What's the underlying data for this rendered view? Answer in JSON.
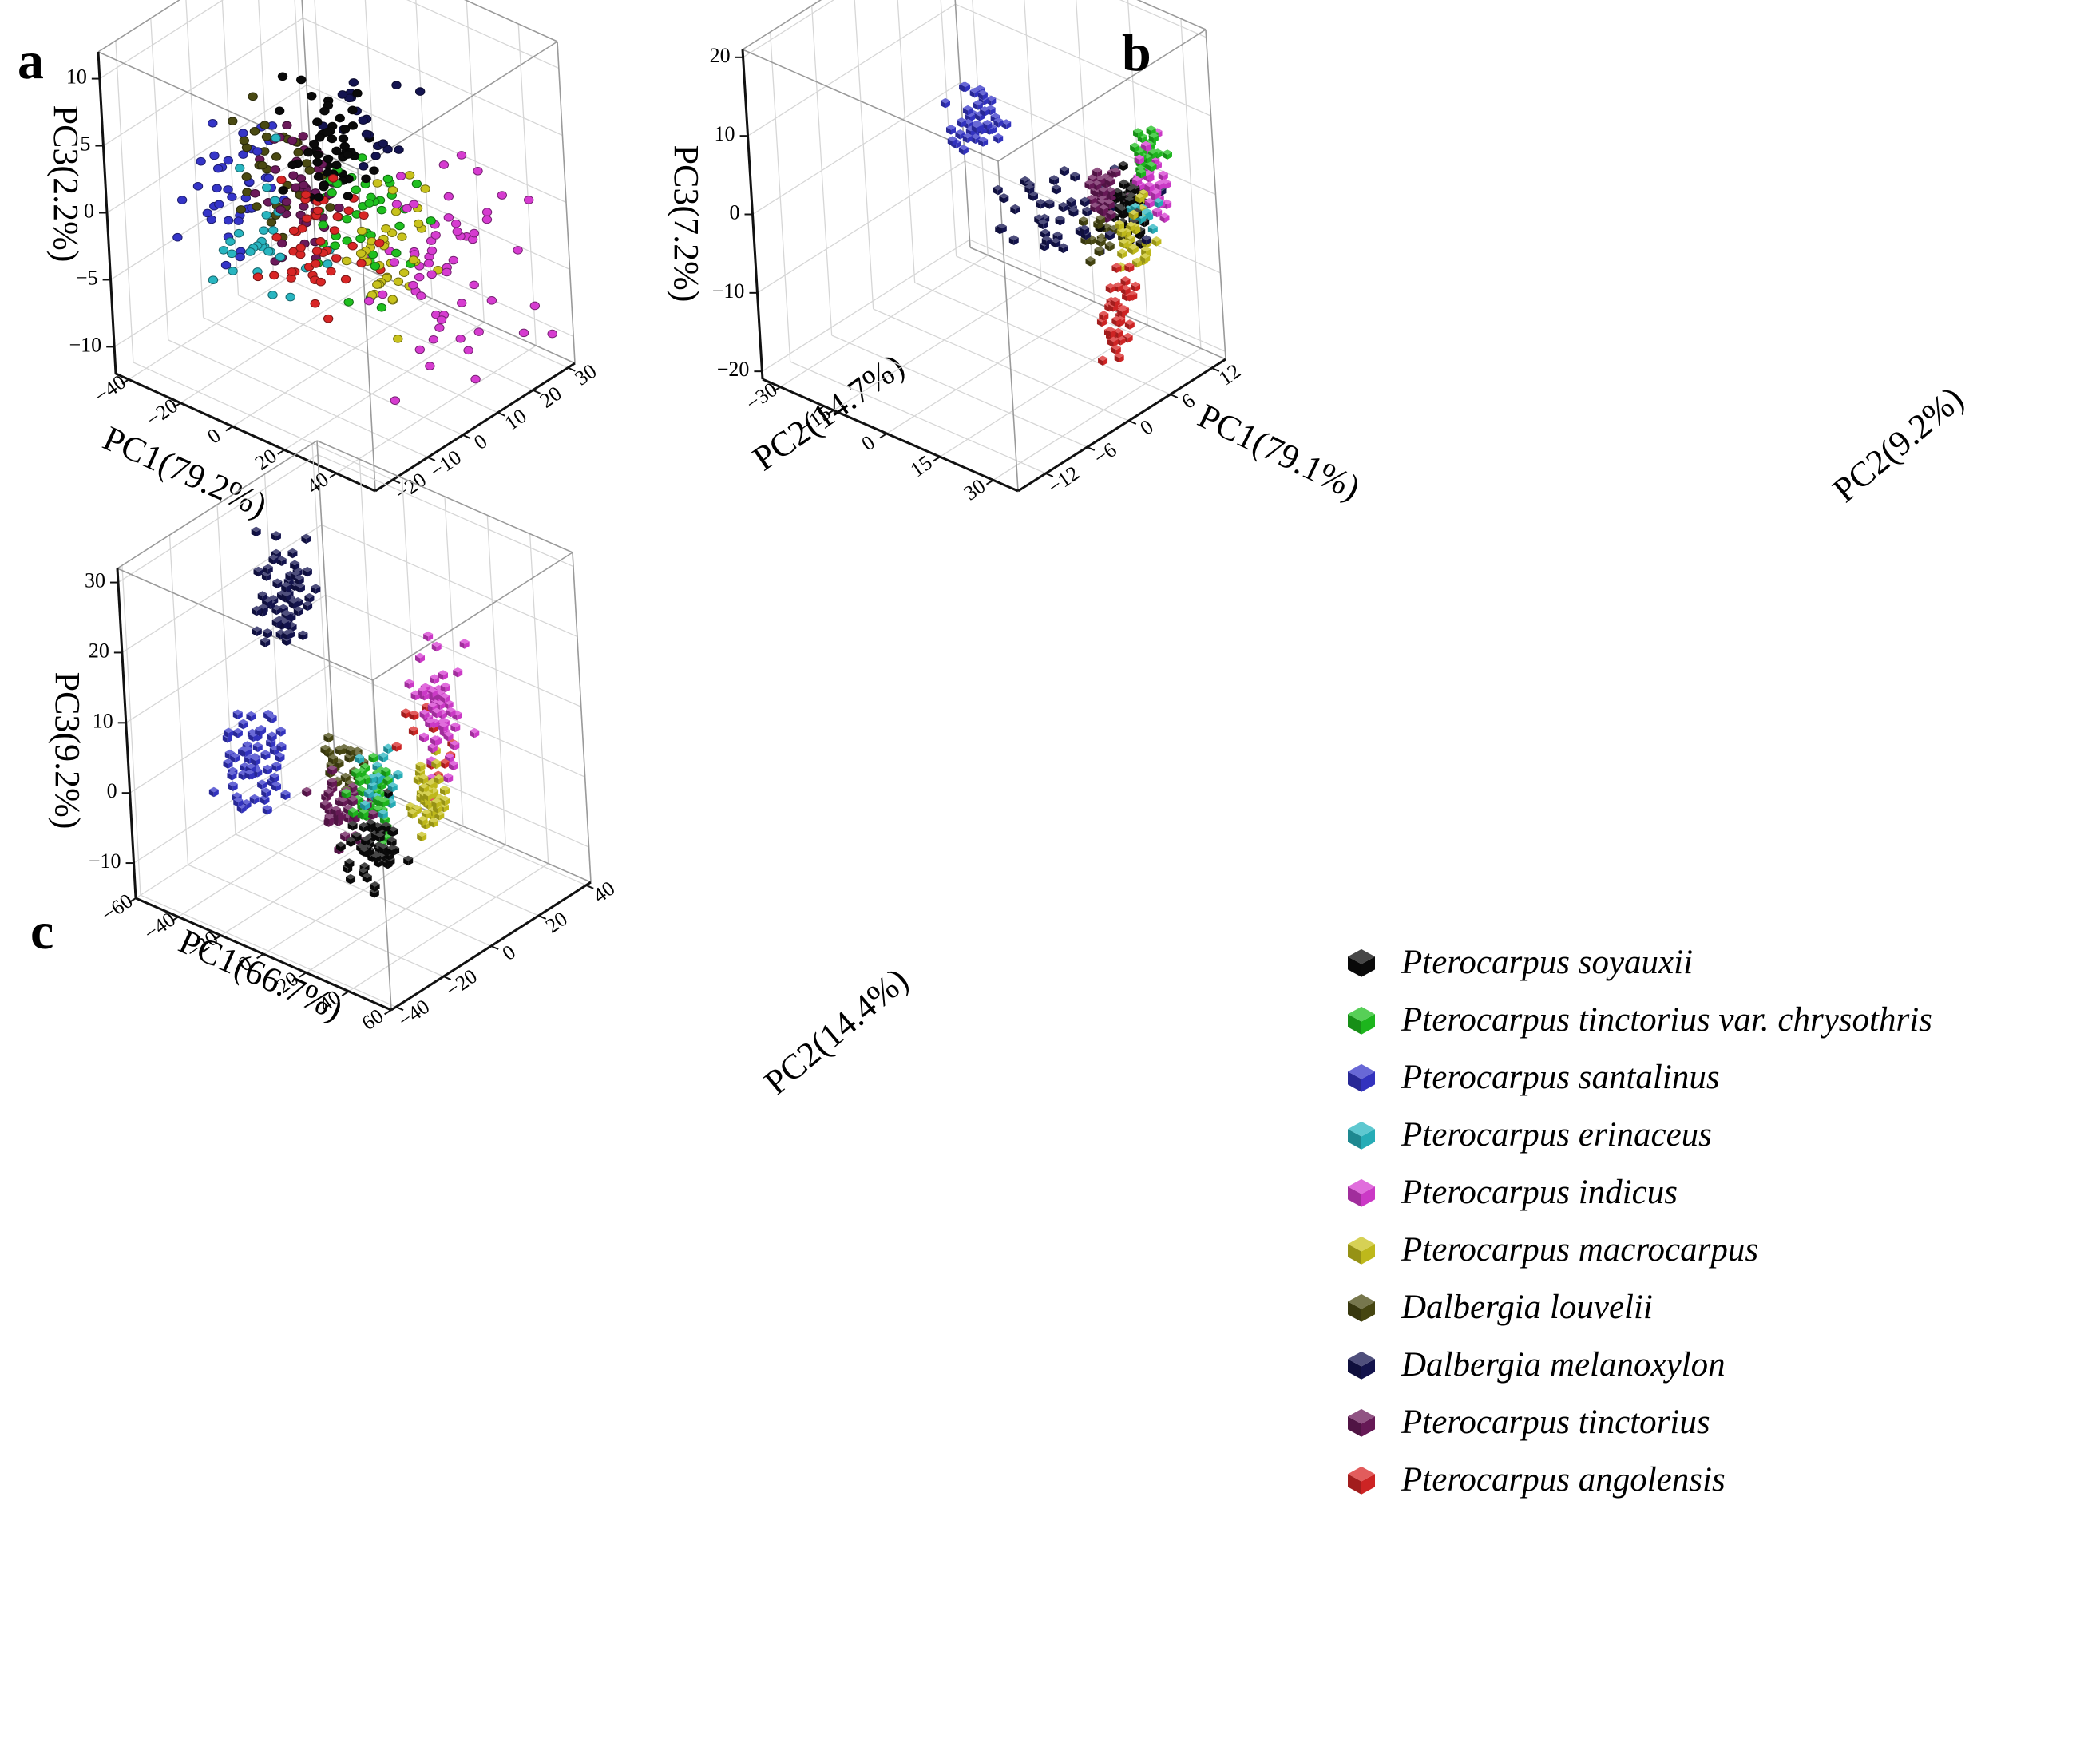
{
  "chart_data": [
    {
      "panel": "a",
      "type": "scatter",
      "projection": "3d",
      "xlabel": "PC1(79.2%)",
      "ylabel": "PC2(14.7%)",
      "zlabel": "PC3(2.2%)",
      "xlim": [
        -45,
        55
      ],
      "ylim": [
        -25,
        32
      ],
      "zlim": [
        -12,
        12
      ],
      "xticks": [
        "−40",
        "−20",
        "0",
        "20",
        "40"
      ],
      "xtick_values": [
        -40,
        -20,
        0,
        20,
        40
      ],
      "yticks": [
        "−20",
        "−10",
        "0",
        "10",
        "20",
        "30"
      ],
      "ytick_values": [
        -20,
        -10,
        0,
        10,
        20,
        30
      ],
      "zticks": [
        "−10",
        "−5",
        "0",
        "5",
        "10"
      ],
      "ztick_values": [
        -10,
        -5,
        0,
        5,
        10
      ],
      "grid": true,
      "marker": "sphere",
      "clusters": [
        {
          "species": "Pterocarpus soyauxii",
          "center": [
            5,
            4,
            4.5
          ],
          "spread": [
            6,
            4,
            1.6
          ],
          "n": 55
        },
        {
          "species": "Pterocarpus tinctorius var. chrysothris",
          "center": [
            14,
            3,
            0
          ],
          "spread": [
            10,
            5,
            2.5
          ],
          "n": 45
        },
        {
          "species": "Pterocarpus santalinus",
          "center": [
            -28,
            0,
            -1
          ],
          "spread": [
            5,
            6,
            2.5
          ],
          "n": 40
        },
        {
          "species": "Pterocarpus erinaceus",
          "center": [
            -8,
            -8,
            -2
          ],
          "spread": [
            6,
            5,
            2.5
          ],
          "n": 30
        },
        {
          "species": "Pterocarpus indicus",
          "center": [
            38,
            8,
            -2
          ],
          "spread": [
            9,
            8,
            3.5
          ],
          "n": 60
        },
        {
          "species": "Pterocarpus macrocarpus",
          "center": [
            26,
            2,
            -1.5
          ],
          "spread": [
            4,
            6,
            3.5
          ],
          "n": 40
        },
        {
          "species": "Dalbergia louvelii",
          "center": [
            -18,
            4,
            1
          ],
          "spread": [
            6,
            4,
            2
          ],
          "n": 35
        },
        {
          "species": "Dalbergia melanoxylon",
          "center": [
            10,
            8,
            6
          ],
          "spread": [
            8,
            3,
            1.5
          ],
          "n": 20
        },
        {
          "species": "Pterocarpus tinctorius",
          "center": [
            -6,
            2,
            0.5
          ],
          "spread": [
            7,
            4,
            2.5
          ],
          "n": 45
        },
        {
          "species": "Pterocarpus angolensis",
          "center": [
            10,
            -6,
            -0.5
          ],
          "spread": [
            7,
            5,
            2.5
          ],
          "n": 45
        }
      ]
    },
    {
      "panel": "b",
      "type": "scatter",
      "projection": "3d",
      "xlabel": "PC1(79.1%)",
      "ylabel": "PC2(9.2%)",
      "zlabel": "PC3(7.2%)",
      "xlim": [
        -35,
        37
      ],
      "ylim": [
        -16,
        14
      ],
      "zlim": [
        -21,
        21
      ],
      "xticks": [
        "−30",
        "−15",
        "0",
        "15",
        "30"
      ],
      "xtick_values": [
        -30,
        -15,
        0,
        15,
        30
      ],
      "yticks": [
        "−12",
        "−6",
        "0",
        "6",
        "12"
      ],
      "ytick_values": [
        -12,
        -6,
        0,
        6,
        12
      ],
      "zticks": [
        "−20",
        "−10",
        "0",
        "10",
        "20"
      ],
      "ztick_values": [
        -20,
        -10,
        0,
        10,
        20
      ],
      "grid": true,
      "marker": "cube",
      "clusters": [
        {
          "species": "Pterocarpus soyauxii",
          "center": [
            28,
            6,
            1.5
          ],
          "spread": [
            2.5,
            1,
            2
          ],
          "n": 45
        },
        {
          "species": "Pterocarpus tinctorius var. chrysothris",
          "center": [
            31,
            8,
            7
          ],
          "spread": [
            1.5,
            0.8,
            1.5
          ],
          "n": 25
        },
        {
          "species": "Pterocarpus santalinus",
          "center": [
            -18,
            8,
            2
          ],
          "spread": [
            3,
            1.2,
            2
          ],
          "n": 40
        },
        {
          "species": "Pterocarpus erinaceus",
          "center": [
            32,
            6.5,
            1
          ],
          "spread": [
            1.5,
            0.8,
            1.5
          ],
          "n": 15
        },
        {
          "species": "Pterocarpus indicus",
          "center": [
            31,
            8,
            4
          ],
          "spread": [
            1.5,
            0.8,
            2.5
          ],
          "n": 35
        },
        {
          "species": "Pterocarpus macrocarpus",
          "center": [
            32,
            5,
            -1
          ],
          "spread": [
            1.5,
            1,
            2.5
          ],
          "n": 30
        },
        {
          "species": "Dalbergia louvelii",
          "center": [
            24,
            4,
            -2
          ],
          "spread": [
            2,
            1,
            1.5
          ],
          "n": 15
        },
        {
          "species": "Dalbergia melanoxylon",
          "center": [
            15,
            4,
            -1
          ],
          "spread": [
            8,
            2,
            3
          ],
          "n": 45
        },
        {
          "species": "Pterocarpus tinctorius",
          "center": [
            24,
            5,
            2
          ],
          "spread": [
            2,
            1,
            1.5
          ],
          "n": 30
        },
        {
          "species": "Pterocarpus angolensis",
          "center": [
            36,
            0,
            -7
          ],
          "spread": [
            1.5,
            1,
            3
          ],
          "n": 40
        }
      ]
    },
    {
      "panel": "c",
      "type": "scatter",
      "projection": "3d",
      "xlabel": "PC1(66.7%)",
      "ylabel": "PC2(14.4%)",
      "zlabel": "PC3(9.2%)",
      "xlim": [
        -60,
        60
      ],
      "ylim": [
        -42,
        42
      ],
      "zlim": [
        -15,
        32
      ],
      "xticks": [
        "−60",
        "−40",
        "−20",
        "0",
        "20",
        "40",
        "60"
      ],
      "xtick_values": [
        -60,
        -40,
        -20,
        0,
        20,
        40,
        60
      ],
      "yticks": [
        "−40",
        "−20",
        "0",
        "20",
        "40"
      ],
      "ytick_values": [
        -40,
        -20,
        0,
        20,
        40
      ],
      "zticks": [
        "−10",
        "0",
        "10",
        "20",
        "30"
      ],
      "ztick_values": [
        -10,
        0,
        10,
        20,
        30
      ],
      "grid": true,
      "marker": "cube",
      "clusters": [
        {
          "species": "Pterocarpus soyauxii",
          "center": [
            12,
            -4,
            -6
          ],
          "spread": [
            5,
            4,
            2.5
          ],
          "n": 50
        },
        {
          "species": "Pterocarpus tinctorius var. chrysothris",
          "center": [
            5,
            2,
            -1
          ],
          "spread": [
            4,
            3,
            3
          ],
          "n": 45
        },
        {
          "species": "Pterocarpus santalinus",
          "center": [
            -50,
            0,
            -3
          ],
          "spread": [
            5,
            4,
            4
          ],
          "n": 60
        },
        {
          "species": "Pterocarpus erinaceus",
          "center": [
            6,
            4,
            1
          ],
          "spread": [
            3,
            3,
            2
          ],
          "n": 20
        },
        {
          "species": "Pterocarpus indicus",
          "center": [
            25,
            12,
            11
          ],
          "spread": [
            5,
            3,
            4
          ],
          "n": 55
        },
        {
          "species": "Pterocarpus macrocarpus",
          "center": [
            28,
            5,
            1
          ],
          "spread": [
            4,
            3,
            2.5
          ],
          "n": 40
        },
        {
          "species": "Dalbergia louvelii",
          "center": [
            -12,
            6,
            0
          ],
          "spread": [
            5,
            3,
            1.5
          ],
          "n": 25
        },
        {
          "species": "Dalbergia melanoxylon",
          "center": [
            -42,
            10,
            19
          ],
          "spread": [
            5,
            4,
            4
          ],
          "n": 65
        },
        {
          "species": "Pterocarpus tinctorius",
          "center": [
            -6,
            -2,
            -4
          ],
          "spread": [
            5,
            4,
            2
          ],
          "n": 45
        },
        {
          "species": "Pterocarpus angolensis",
          "center": [
            18,
            15,
            5
          ],
          "spread": [
            6,
            6,
            4
          ],
          "n": 12
        }
      ]
    }
  ],
  "panel_labels": {
    "a": "a",
    "b": "b",
    "c": "c"
  },
  "legend": {
    "position": "bottom-right",
    "entries": [
      {
        "label": "Pterocarpus soyauxii",
        "color": "#0a0a0a"
      },
      {
        "label": "Pterocarpus tinctorius var. chrysothris",
        "color": "#1fbf1f"
      },
      {
        "label": "Pterocarpus santalinus",
        "color": "#3535c8"
      },
      {
        "label": "Pterocarpus erinaceus",
        "color": "#28b5c0"
      },
      {
        "label": "Pterocarpus indicus",
        "color": "#d63cd0"
      },
      {
        "label": "Pterocarpus macrocarpus",
        "color": "#c8c21c"
      },
      {
        "label": "Dalbergia louvelii",
        "color": "#4a4a12"
      },
      {
        "label": "Dalbergia melanoxylon",
        "color": "#141450"
      },
      {
        "label": "Pterocarpus tinctorius",
        "color": "#6b1a5a"
      },
      {
        "label": "Pterocarpus angolensis",
        "color": "#d82626"
      }
    ]
  }
}
